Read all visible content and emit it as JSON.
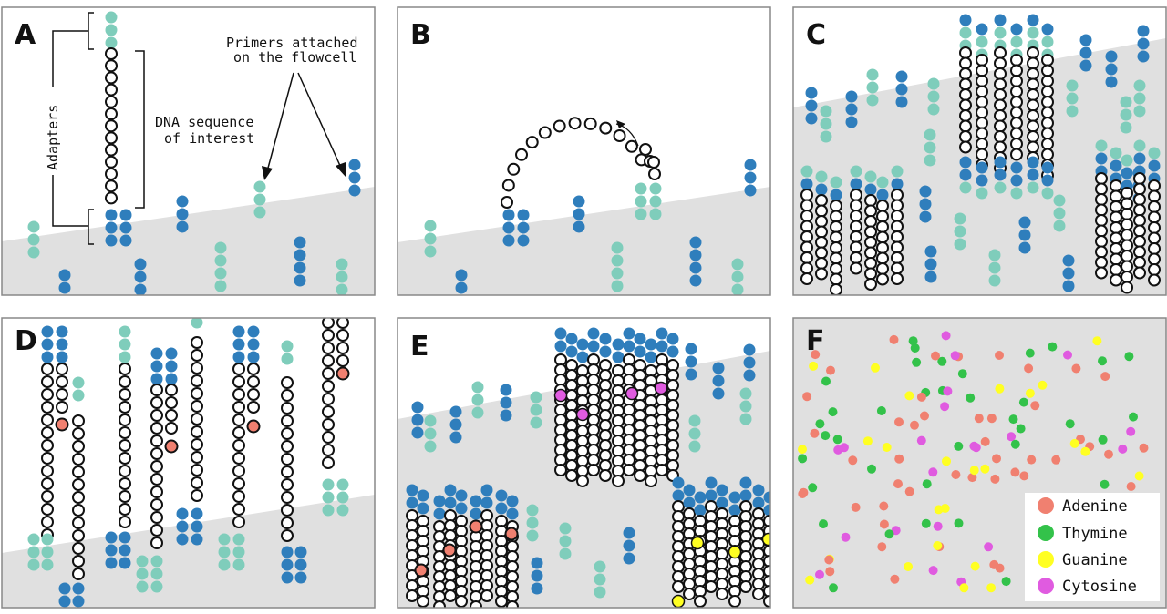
{
  "colors": {
    "dark_adapter": "#2f7ebc",
    "light_adapter": "#7fcdbb",
    "dna_fill": "#ffffff",
    "dna_stroke": "#111111",
    "flowcell": "#e0e0e0",
    "frame": "#888888",
    "adenine": "#f08070",
    "thymine": "#33c24a",
    "guanine": "#ffff22",
    "cytosine": "#e05be0"
  },
  "panels": {
    "a": {
      "letter": "A",
      "adapters_label": "Adapters",
      "dna_label_line1": "DNA sequence",
      "dna_label_line2": "of interest",
      "primers_label_line1": "Primers attached",
      "primers_label_line2": "on the flowcell"
    },
    "b": {
      "letter": "B"
    },
    "c": {
      "letter": "C"
    },
    "d": {
      "letter": "D"
    },
    "e": {
      "letter": "E"
    },
    "f": {
      "letter": "F",
      "legend": [
        {
          "label": "Adenine",
          "color": "#f08070"
        },
        {
          "label": "Thymine",
          "color": "#33c24a"
        },
        {
          "label": "Guanine",
          "color": "#ffff22"
        },
        {
          "label": "Cytosine",
          "color": "#e05be0"
        }
      ]
    }
  }
}
